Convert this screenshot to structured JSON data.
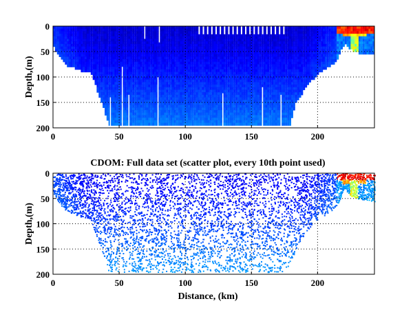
{
  "chart_data": [
    {
      "type": "heatmap",
      "title": "",
      "xlabel": "",
      "ylabel": "Depth,(m)",
      "xlim": [
        0,
        243
      ],
      "ylim": [
        200,
        0
      ],
      "y_reversed": true,
      "xticks": [
        0,
        50,
        100,
        150,
        200
      ],
      "yticks": [
        0,
        50,
        100,
        150,
        200
      ],
      "grid": "dotted",
      "colormap": "jet",
      "bottom_profile_km": [
        0,
        5,
        10,
        20,
        28,
        35,
        42,
        178,
        183,
        190,
        200,
        210,
        215,
        220,
        225,
        230,
        243
      ],
      "bottom_profile_m": [
        40,
        60,
        75,
        85,
        90,
        140,
        195,
        195,
        150,
        120,
        90,
        75,
        60,
        30,
        45,
        50,
        55
      ]
    },
    {
      "type": "scatter",
      "title": "CDOM: Full data set (scatter plot, every 10th point used)",
      "xlabel": "Distance, (km)",
      "ylabel": "Depth,(m)",
      "xlim": [
        0,
        243
      ],
      "ylim": [
        200,
        0
      ],
      "y_reversed": true,
      "xticks": [
        0,
        50,
        100,
        150,
        200
      ],
      "yticks": [
        0,
        50,
        100,
        150,
        200
      ],
      "grid": "dotted",
      "colormap": "jet",
      "bottom_profile_km": [
        0,
        5,
        10,
        20,
        28,
        35,
        42,
        178,
        183,
        190,
        200,
        210,
        215,
        220,
        225,
        230,
        243
      ],
      "bottom_profile_m": [
        40,
        60,
        75,
        85,
        90,
        140,
        195,
        195,
        150,
        120,
        90,
        75,
        60,
        30,
        45,
        50,
        55
      ]
    }
  ]
}
